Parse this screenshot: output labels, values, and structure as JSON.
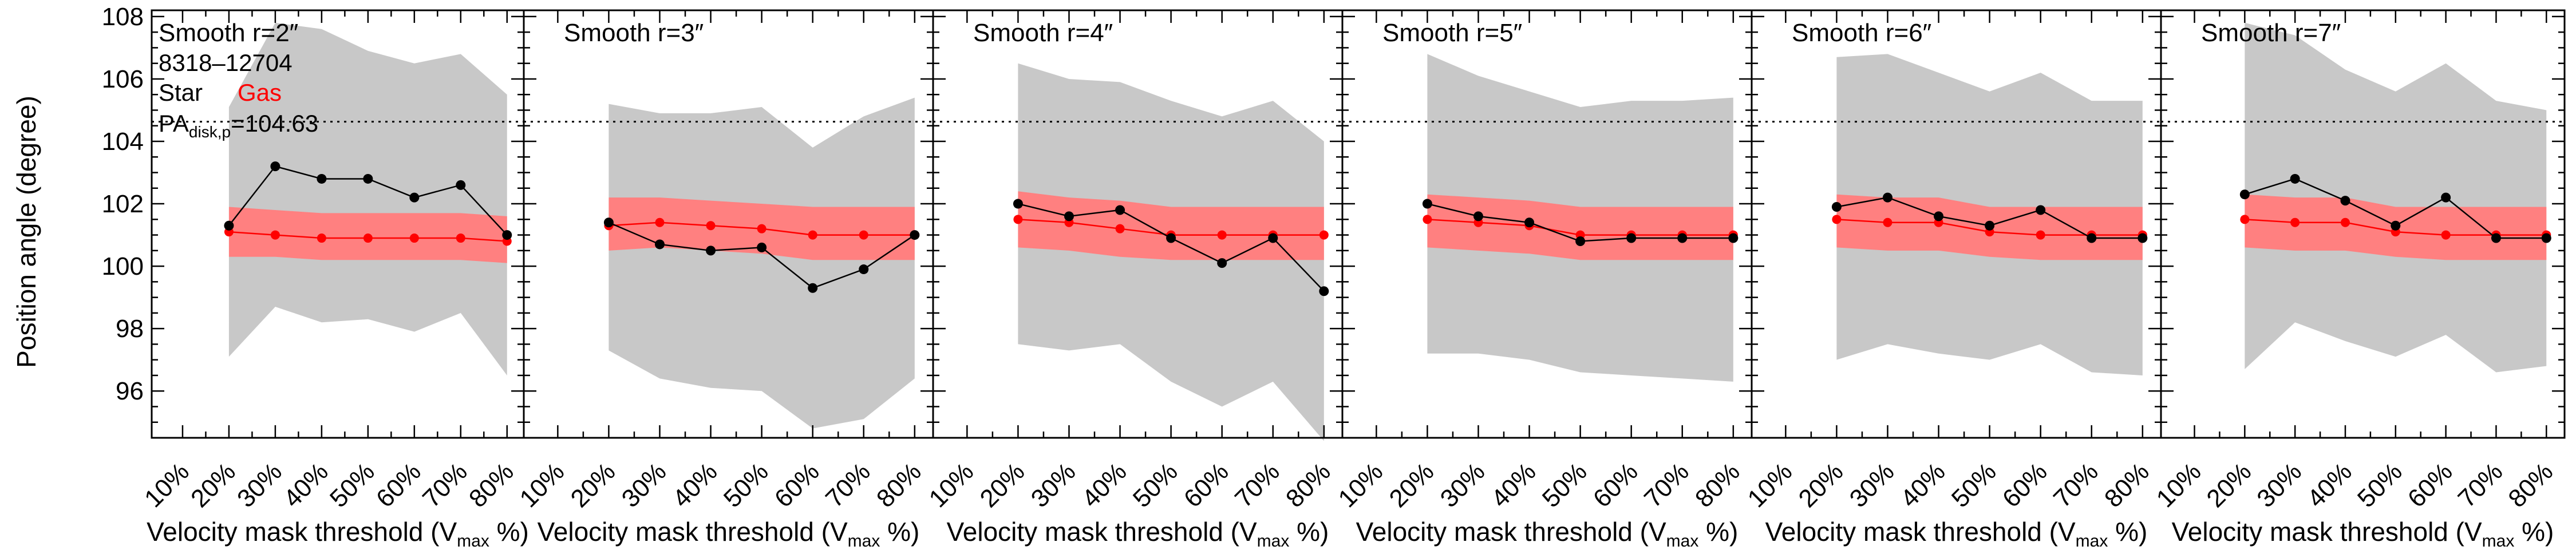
{
  "ylabel": "Position angle (degree)",
  "chart_data": {
    "type": "line",
    "x_ticks": [
      "10%",
      "20%",
      "30%",
      "40%",
      "50%",
      "60%",
      "70%",
      "80%"
    ],
    "xlabel": {
      "main": "Velocity mask threshold (V",
      "sub": "max",
      "tail": " %)"
    },
    "ylim": [
      94.5,
      108.2
    ],
    "y_ticks": [
      96,
      98,
      100,
      102,
      104,
      106,
      108
    ],
    "reference_line": 104.63,
    "colors": {
      "star": "#000000",
      "gas": "#ff0000",
      "gas_band": "#ff8080",
      "star_band": "#c8c8c8"
    },
    "annotation": {
      "id": "8318–12704",
      "star_label": "Star",
      "gas_label": "Gas",
      "pa_prefix": "PA",
      "pa_sub": "disk,p",
      "pa_value": "=104.63"
    },
    "panels": [
      {
        "title": "Smooth r=2″",
        "x": [
          20,
          30,
          40,
          50,
          60,
          70,
          80
        ],
        "star": [
          101.3,
          103.2,
          102.8,
          102.8,
          102.2,
          102.6,
          101.0
        ],
        "gas": [
          101.1,
          101.0,
          100.9,
          100.9,
          100.9,
          100.9,
          100.8
        ],
        "star_band": {
          "upper": [
            105.1,
            107.8,
            107.6,
            106.9,
            106.5,
            106.8,
            105.5
          ],
          "lower": [
            97.1,
            98.7,
            98.2,
            98.3,
            97.9,
            98.5,
            96.5
          ]
        },
        "gas_band": {
          "upper": [
            101.9,
            101.8,
            101.7,
            101.7,
            101.7,
            101.7,
            101.6
          ],
          "lower": [
            100.3,
            100.3,
            100.2,
            100.2,
            100.2,
            100.2,
            100.1
          ]
        }
      },
      {
        "title": "Smooth r=3″",
        "x": [
          20,
          30,
          40,
          50,
          60,
          70,
          80
        ],
        "star": [
          101.4,
          100.7,
          100.5,
          100.6,
          99.3,
          99.9,
          101.0
        ],
        "gas": [
          101.3,
          101.4,
          101.3,
          101.2,
          101.0,
          101.0,
          101.0
        ],
        "star_band": {
          "upper": [
            105.2,
            104.9,
            104.9,
            105.1,
            103.8,
            104.8,
            105.4
          ],
          "lower": [
            97.3,
            96.4,
            96.1,
            96.0,
            94.8,
            95.1,
            96.4
          ]
        },
        "gas_band": {
          "upper": [
            102.2,
            102.2,
            102.1,
            102.0,
            101.9,
            101.9,
            101.9
          ],
          "lower": [
            100.5,
            100.6,
            100.5,
            100.4,
            100.2,
            100.2,
            100.2
          ]
        }
      },
      {
        "title": "Smooth r=4″",
        "x": [
          20,
          30,
          40,
          50,
          60,
          70,
          80
        ],
        "star": [
          102.0,
          101.6,
          101.8,
          100.9,
          100.1,
          100.9,
          99.2
        ],
        "gas": [
          101.5,
          101.4,
          101.2,
          101.0,
          101.0,
          101.0,
          101.0
        ],
        "star_band": {
          "upper": [
            106.5,
            106.0,
            105.9,
            105.3,
            104.8,
            105.3,
            104.0
          ],
          "lower": [
            97.5,
            97.3,
            97.5,
            96.3,
            95.5,
            96.3,
            94.4
          ]
        },
        "gas_band": {
          "upper": [
            102.4,
            102.2,
            102.1,
            101.9,
            101.9,
            101.9,
            101.9
          ],
          "lower": [
            100.6,
            100.5,
            100.3,
            100.2,
            100.2,
            100.2,
            100.2
          ]
        }
      },
      {
        "title": "Smooth r=5″",
        "x": [
          20,
          30,
          40,
          50,
          60,
          70,
          80
        ],
        "star": [
          102.0,
          101.6,
          101.4,
          100.8,
          100.9,
          100.9,
          100.9
        ],
        "gas": [
          101.5,
          101.4,
          101.3,
          101.0,
          101.0,
          101.0,
          101.0
        ],
        "star_band": {
          "upper": [
            106.8,
            106.1,
            105.6,
            105.1,
            105.3,
            105.3,
            105.4
          ],
          "lower": [
            97.2,
            97.2,
            97.0,
            96.6,
            96.5,
            96.4,
            96.3
          ]
        },
        "gas_band": {
          "upper": [
            102.3,
            102.2,
            102.1,
            101.9,
            101.9,
            101.9,
            101.9
          ],
          "lower": [
            100.6,
            100.5,
            100.4,
            100.2,
            100.2,
            100.2,
            100.2
          ]
        }
      },
      {
        "title": "Smooth r=6″",
        "x": [
          20,
          30,
          40,
          50,
          60,
          70,
          80
        ],
        "star": [
          101.9,
          102.2,
          101.6,
          101.3,
          101.8,
          100.9,
          100.9
        ],
        "gas": [
          101.5,
          101.4,
          101.4,
          101.1,
          101.0,
          101.0,
          101.0
        ],
        "star_band": {
          "upper": [
            106.7,
            106.8,
            106.2,
            105.6,
            106.2,
            105.3,
            105.3
          ],
          "lower": [
            97.0,
            97.5,
            97.2,
            97.0,
            97.5,
            96.6,
            96.5
          ]
        },
        "gas_band": {
          "upper": [
            102.3,
            102.2,
            102.2,
            101.9,
            101.9,
            101.9,
            101.9
          ],
          "lower": [
            100.6,
            100.5,
            100.5,
            100.3,
            100.2,
            100.2,
            100.2
          ]
        }
      },
      {
        "title": "Smooth r=7″",
        "x": [
          20,
          30,
          40,
          50,
          60,
          70,
          80
        ],
        "star": [
          102.3,
          102.8,
          102.1,
          101.3,
          102.2,
          100.9,
          100.9
        ],
        "gas": [
          101.5,
          101.4,
          101.4,
          101.1,
          101.0,
          101.0,
          101.0
        ],
        "star_band": {
          "upper": [
            107.8,
            107.4,
            106.3,
            105.6,
            106.5,
            105.3,
            105.0
          ],
          "lower": [
            96.7,
            98.2,
            97.6,
            97.1,
            97.8,
            96.6,
            96.8
          ]
        },
        "gas_band": {
          "upper": [
            102.3,
            102.2,
            102.2,
            101.9,
            101.9,
            101.9,
            101.9
          ],
          "lower": [
            100.6,
            100.5,
            100.5,
            100.3,
            100.2,
            100.2,
            100.2
          ]
        }
      }
    ]
  }
}
